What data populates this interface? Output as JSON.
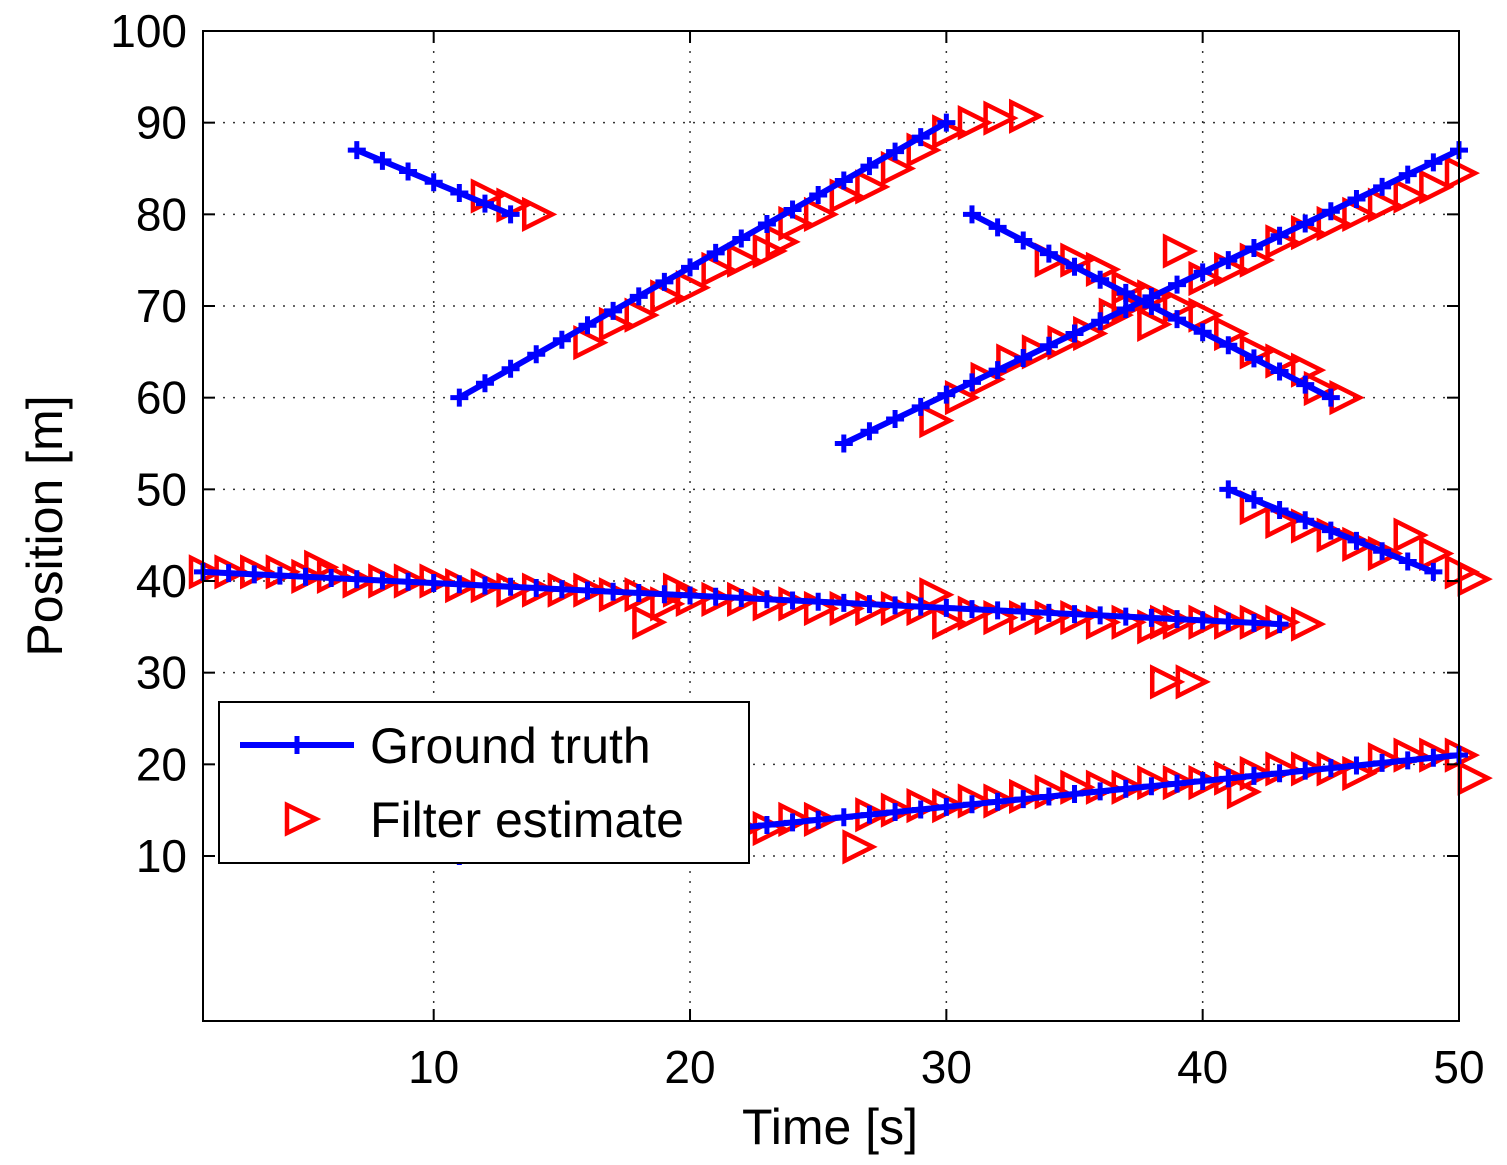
{
  "chart_data": {
    "type": "line",
    "xlabel": "Time [s]",
    "ylabel": "Position [m]",
    "xlim": [
      1,
      50
    ],
    "ylim": [
      -8,
      100
    ],
    "xticks": [
      10,
      20,
      30,
      40,
      50
    ],
    "yticks": [
      10,
      20,
      30,
      40,
      50,
      60,
      70,
      80,
      90,
      100
    ],
    "grid": true,
    "legend": {
      "placement": "bottom-left",
      "entries": [
        "Ground truth",
        "Filter estimate"
      ]
    },
    "colors": {
      "truth": "#0000ff",
      "estimate": "#ff0000"
    },
    "series": [
      {
        "name": "Ground truth",
        "role": "truth",
        "marker": "plus",
        "line": "solid",
        "segments": [
          {
            "x": [
              7,
              13
            ],
            "y": [
              87,
              80
            ]
          },
          {
            "x": [
              11,
              30
            ],
            "y": [
              60,
              90
            ]
          },
          {
            "x": [
              31,
              45
            ],
            "y": [
              80,
              60
            ]
          },
          {
            "x": [
              26,
              50
            ],
            "y": [
              55,
              87
            ]
          },
          {
            "x": [
              41,
              49
            ],
            "y": [
              50,
              41
            ]
          },
          {
            "x": [
              1,
              43
            ],
            "y": [
              41,
              35.3
            ]
          },
          {
            "x": [
              11,
              50
            ],
            "y": [
              10,
              21
            ]
          }
        ]
      },
      {
        "name": "Filter estimate",
        "role": "estimate",
        "marker": "triangle-right",
        "line": "none",
        "points": [
          [
            12,
            82
          ],
          [
            13,
            81
          ],
          [
            14,
            80
          ],
          [
            16,
            66
          ],
          [
            17,
            68
          ],
          [
            18,
            69
          ],
          [
            19,
            71
          ],
          [
            20,
            72
          ],
          [
            21,
            74
          ],
          [
            22,
            75
          ],
          [
            23,
            76
          ],
          [
            23.5,
            77
          ],
          [
            24,
            79
          ],
          [
            25,
            80
          ],
          [
            26,
            82
          ],
          [
            27,
            83
          ],
          [
            28,
            85
          ],
          [
            29,
            87
          ],
          [
            30,
            89
          ],
          [
            31,
            90
          ],
          [
            32,
            90.5
          ],
          [
            33,
            90.7
          ],
          [
            34,
            75
          ],
          [
            35,
            75
          ],
          [
            36,
            74
          ],
          [
            37,
            72
          ],
          [
            38,
            71
          ],
          [
            39,
            70
          ],
          [
            40,
            69
          ],
          [
            41,
            67
          ],
          [
            42,
            65
          ],
          [
            43,
            64
          ],
          [
            44,
            63
          ],
          [
            44.5,
            61
          ],
          [
            45.5,
            60
          ],
          [
            29.5,
            57.5
          ],
          [
            30.5,
            60
          ],
          [
            31.5,
            62
          ],
          [
            32.5,
            64
          ],
          [
            33.5,
            65
          ],
          [
            34.5,
            66
          ],
          [
            35.5,
            67
          ],
          [
            36.5,
            69
          ],
          [
            37,
            70
          ],
          [
            38,
            68
          ],
          [
            39,
            76
          ],
          [
            40,
            73
          ],
          [
            41,
            74
          ],
          [
            42,
            75
          ],
          [
            43,
            77
          ],
          [
            44,
            78
          ],
          [
            45,
            79
          ],
          [
            46,
            80
          ],
          [
            47,
            81
          ],
          [
            48,
            82
          ],
          [
            49,
            83
          ],
          [
            50,
            84.5
          ],
          [
            42,
            48
          ],
          [
            43,
            46.5
          ],
          [
            44,
            46
          ],
          [
            45,
            45
          ],
          [
            46,
            44
          ],
          [
            47,
            43
          ],
          [
            48,
            45
          ],
          [
            49,
            43
          ],
          [
            50,
            41
          ],
          [
            50.5,
            40.2
          ],
          [
            1,
            41
          ],
          [
            2,
            41
          ],
          [
            3,
            41
          ],
          [
            4,
            41
          ],
          [
            5,
            40.5
          ],
          [
            5.5,
            41.5
          ],
          [
            6,
            40.5
          ],
          [
            7,
            40
          ],
          [
            8,
            40
          ],
          [
            9,
            40
          ],
          [
            10,
            40
          ],
          [
            11,
            39.5
          ],
          [
            12,
            39.5
          ],
          [
            13,
            39
          ],
          [
            14,
            39
          ],
          [
            15,
            39
          ],
          [
            16,
            39
          ],
          [
            17,
            38.5
          ],
          [
            18,
            38.5
          ],
          [
            18.3,
            35.5
          ],
          [
            19,
            37.5
          ],
          [
            19.5,
            39
          ],
          [
            20,
            38
          ],
          [
            21,
            38
          ],
          [
            22,
            38
          ],
          [
            23,
            37.5
          ],
          [
            24,
            37.5
          ],
          [
            25,
            37
          ],
          [
            26,
            37
          ],
          [
            27,
            37
          ],
          [
            28,
            37
          ],
          [
            29,
            37
          ],
          [
            29.5,
            38.5
          ],
          [
            30,
            35.5
          ],
          [
            31,
            36.5
          ],
          [
            32,
            36
          ],
          [
            33,
            36
          ],
          [
            34,
            36
          ],
          [
            35,
            36
          ],
          [
            36,
            35.5
          ],
          [
            37,
            35.5
          ],
          [
            38,
            35
          ],
          [
            38.5,
            35.5
          ],
          [
            39,
            35.5
          ],
          [
            40,
            35.5
          ],
          [
            41,
            35.5
          ],
          [
            42,
            35.5
          ],
          [
            43,
            35.5
          ],
          [
            44,
            35.3
          ],
          [
            38.5,
            29
          ],
          [
            39.5,
            29
          ],
          [
            15.5,
            13
          ],
          [
            16,
            12
          ],
          [
            17,
            12.5
          ],
          [
            18,
            12.5
          ],
          [
            19,
            13.5
          ],
          [
            19.5,
            15
          ],
          [
            20,
            13
          ],
          [
            21,
            13
          ],
          [
            22,
            13
          ],
          [
            23,
            13
          ],
          [
            24,
            14
          ],
          [
            25,
            14
          ],
          [
            26.5,
            11
          ],
          [
            27,
            14.5
          ],
          [
            28,
            15
          ],
          [
            29,
            15.5
          ],
          [
            30,
            15.5
          ],
          [
            31,
            16
          ],
          [
            32,
            16
          ],
          [
            33,
            16.5
          ],
          [
            34,
            17
          ],
          [
            35,
            17.5
          ],
          [
            36,
            17.5
          ],
          [
            37,
            17.5
          ],
          [
            38,
            18
          ],
          [
            39,
            18
          ],
          [
            40,
            18
          ],
          [
            41,
            18.5
          ],
          [
            41.5,
            17
          ],
          [
            42,
            19
          ],
          [
            43,
            19.5
          ],
          [
            44,
            19.5
          ],
          [
            45,
            19.5
          ],
          [
            46,
            19
          ],
          [
            47,
            20.5
          ],
          [
            48,
            21
          ],
          [
            49,
            21
          ],
          [
            50,
            21
          ],
          [
            50.5,
            18.5
          ]
        ]
      }
    ]
  }
}
